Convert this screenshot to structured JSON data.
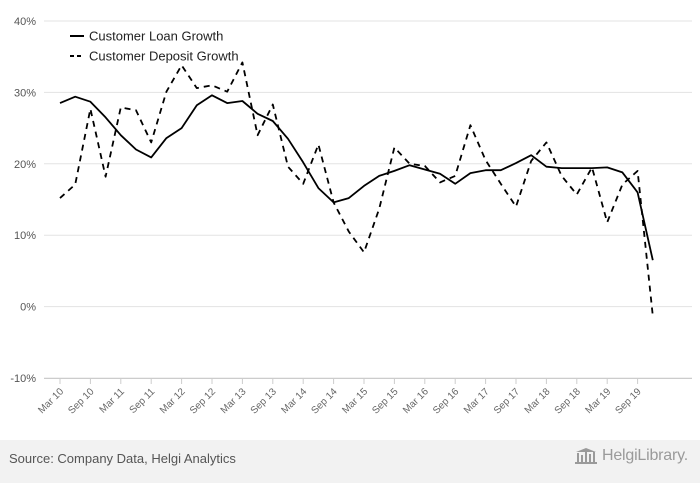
{
  "chart_data": {
    "type": "line",
    "title": "",
    "xlabel": "",
    "ylabel": "",
    "ylim": [
      -10,
      40
    ],
    "y_ticks": [
      "-10%",
      "0%",
      "10%",
      "20%",
      "30%",
      "40%"
    ],
    "y_tick_values": [
      -10,
      0,
      10,
      20,
      30,
      40
    ],
    "grid": "horizontal",
    "legend_position": "top-left",
    "x": [
      "Mar 10",
      "Jun 10",
      "Sep 10",
      "Dec 10",
      "Mar 11",
      "Jun 11",
      "Sep 11",
      "Dec 11",
      "Mar 12",
      "Jun 12",
      "Sep 12",
      "Dec 12",
      "Mar 13",
      "Jun 13",
      "Sep 13",
      "Dec 13",
      "Mar 14",
      "Jun 14",
      "Sep 14",
      "Dec 14",
      "Mar 15",
      "Jun 15",
      "Sep 15",
      "Dec 15",
      "Mar 16",
      "Jun 16",
      "Sep 16",
      "Dec 16",
      "Mar 17",
      "Jun 17",
      "Sep 17",
      "Dec 17",
      "Mar 18",
      "Jun 18",
      "Sep 18",
      "Dec 18",
      "Mar 19",
      "Jun 19",
      "Sep 19",
      "Dec 19"
    ],
    "x_tick_labels": [
      "Mar 10",
      "Sep 10",
      "Mar 11",
      "Sep 11",
      "Mar 12",
      "Sep 12",
      "Mar 13",
      "Sep 13",
      "Mar 14",
      "Sep 14",
      "Mar 15",
      "Sep 15",
      "Mar 16",
      "Sep 16",
      "Mar 17",
      "Sep 17",
      "Mar 18",
      "Sep 18",
      "Mar 19",
      "Sep 19"
    ],
    "series": [
      {
        "name": "Customer Loan Growth",
        "style": "solid",
        "color": "#000000",
        "values": [
          28.5,
          29.4,
          28.7,
          26.5,
          24.0,
          22.0,
          20.9,
          23.6,
          25.0,
          28.2,
          29.6,
          28.5,
          28.8,
          27.0,
          26.0,
          23.5,
          20.2,
          16.6,
          14.6,
          15.2,
          16.9,
          18.3,
          19.0,
          19.8,
          19.2,
          18.6,
          17.2,
          18.7,
          19.1,
          19.1,
          20.1,
          21.2,
          19.6,
          19.4,
          19.4,
          19.4,
          19.5,
          18.8,
          16.0,
          6.5
        ]
      },
      {
        "name": "Customer Deposit Growth",
        "style": "dashed",
        "color": "#000000",
        "values": [
          15.2,
          17.1,
          27.7,
          18.2,
          27.9,
          27.5,
          23.0,
          30.1,
          33.8,
          30.6,
          31.0,
          30.1,
          34.2,
          24.0,
          28.3,
          19.6,
          17.2,
          22.7,
          14.6,
          10.5,
          7.6,
          13.7,
          22.3,
          20.0,
          19.7,
          17.4,
          18.3,
          25.4,
          20.5,
          17.2,
          14.0,
          20.4,
          23.0,
          18.3,
          15.7,
          19.5,
          11.8,
          17.1,
          19.0,
          -1.3
        ]
      }
    ]
  },
  "footer": {
    "source": "Source: Company Data, Helgi Analytics",
    "logo_text": "HelgiLibrary."
  }
}
